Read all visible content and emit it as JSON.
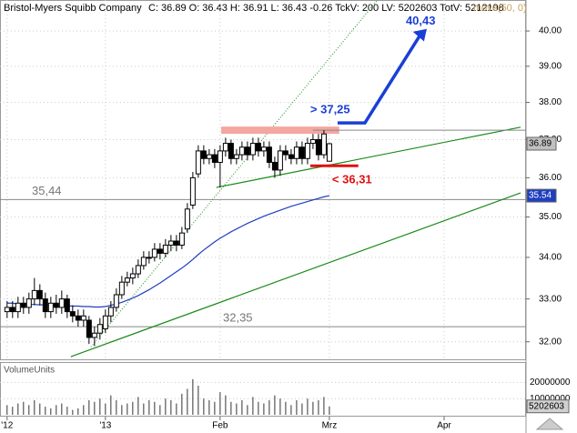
{
  "chart_data": {
    "type": "candlestick",
    "title": "Bristol-Myers Squibb Company",
    "subtitle": "C: 36.89 O: 36.43 H: 36.91 L: 36.43 -0.26 TckV: 200 LV: 5202603 TotV: 5212198",
    "log_scale": true,
    "grid": true,
    "ylim": [
      31.6,
      40.9
    ],
    "yticks": [
      {
        "value": 32,
        "label": "32.00"
      },
      {
        "value": 33,
        "label": "33.00"
      },
      {
        "value": 34,
        "label": "34.00"
      },
      {
        "value": 35,
        "label": "35.00"
      },
      {
        "value": 36,
        "label": "36.00"
      },
      {
        "value": 37,
        "label": "37.00"
      },
      {
        "value": 38,
        "label": "38.00"
      },
      {
        "value": 39,
        "label": "39.00"
      },
      {
        "value": 40,
        "label": "40.00"
      }
    ],
    "xlim": [
      -1.3,
      95
    ],
    "xticks": [
      {
        "value": 0,
        "label": "'12"
      },
      {
        "value": 18,
        "label": "'13"
      },
      {
        "value": 39,
        "label": "Feb"
      },
      {
        "value": 59,
        "label": "Mrz"
      },
      {
        "value": 80,
        "label": "Apr"
      }
    ],
    "open": [
      32.7,
      32.8,
      32.7,
      32.9,
      32.8,
      33.0,
      33.2,
      33.0,
      32.7,
      32.9,
      32.8,
      33.0,
      32.7,
      32.6,
      32.5,
      32.5,
      32.1,
      32.2,
      32.3,
      32.6,
      32.8,
      33.1,
      33.4,
      33.5,
      33.6,
      33.8,
      34.0,
      34.0,
      34.2,
      34.1,
      34.3,
      34.4,
      34.3,
      34.7,
      35.3,
      36.1,
      36.7,
      36.5,
      36.6,
      36.4,
      36.7,
      36.9,
      36.5,
      36.6,
      36.8,
      36.6,
      36.9,
      36.7,
      36.8,
      36.4,
      36.2,
      36.7,
      36.6,
      36.5,
      36.8,
      36.5,
      36.9,
      37.0,
      36.6,
      36.43
    ],
    "high": [
      32.95,
      32.95,
      33.05,
      33.05,
      33.15,
      33.5,
      33.35,
      33.15,
      33.05,
      33.1,
      33.2,
      33.1,
      32.85,
      32.75,
      32.75,
      32.6,
      32.35,
      32.55,
      32.75,
      32.95,
      33.25,
      33.55,
      33.65,
      33.75,
      33.95,
      34.15,
      34.15,
      34.35,
      34.35,
      34.45,
      34.55,
      34.55,
      34.75,
      35.35,
      36.15,
      36.85,
      36.85,
      36.75,
      36.75,
      36.85,
      37.05,
      37.0,
      36.75,
      36.95,
      36.95,
      37.05,
      37.05,
      36.95,
      36.95,
      36.55,
      36.85,
      36.85,
      36.75,
      36.95,
      36.95,
      37.05,
      37.15,
      37.15,
      37.25,
      36.91
    ],
    "low": [
      32.55,
      32.55,
      32.55,
      32.65,
      32.65,
      32.85,
      32.85,
      32.55,
      32.55,
      32.65,
      32.65,
      32.55,
      32.45,
      32.35,
      32.35,
      31.95,
      31.9,
      32.05,
      32.2,
      32.45,
      32.7,
      33.0,
      33.3,
      33.35,
      33.5,
      33.7,
      33.85,
      33.9,
      33.95,
      34.0,
      34.15,
      34.15,
      34.2,
      34.6,
      35.2,
      36.0,
      36.35,
      36.35,
      36.25,
      35.75,
      36.55,
      36.35,
      36.35,
      36.45,
      36.45,
      36.45,
      36.55,
      36.55,
      36.25,
      36.0,
      36.05,
      36.45,
      36.35,
      36.35,
      36.35,
      36.35,
      36.75,
      36.45,
      36.5,
      36.43
    ],
    "close": [
      32.8,
      32.7,
      32.9,
      32.8,
      33.0,
      33.2,
      33.0,
      32.7,
      32.9,
      32.8,
      33.0,
      32.7,
      32.6,
      32.5,
      32.6,
      32.1,
      32.2,
      32.4,
      32.6,
      32.8,
      33.1,
      33.4,
      33.5,
      33.6,
      33.8,
      34.0,
      34.0,
      34.2,
      34.1,
      34.3,
      34.4,
      34.3,
      34.6,
      35.2,
      36.0,
      36.7,
      36.5,
      36.6,
      36.4,
      36.7,
      36.9,
      36.5,
      36.6,
      36.8,
      36.6,
      36.9,
      36.7,
      36.8,
      36.4,
      36.2,
      36.7,
      36.6,
      36.5,
      36.8,
      36.5,
      36.9,
      37.0,
      36.6,
      37.15,
      36.89
    ],
    "ma": {
      "name": "move(50, 0)",
      "color": "#1f3fbf",
      "values": [
        32.9,
        32.9,
        32.88,
        32.88,
        32.87,
        32.87,
        32.86,
        32.86,
        32.85,
        32.85,
        32.84,
        32.84,
        32.83,
        32.83,
        32.82,
        32.82,
        32.81,
        32.81,
        32.82,
        32.85,
        32.88,
        32.92,
        32.97,
        33.02,
        33.08,
        33.15,
        33.22,
        33.3,
        33.38,
        33.47,
        33.56,
        33.65,
        33.74,
        33.84,
        33.95,
        34.07,
        34.18,
        34.28,
        34.38,
        34.47,
        34.55,
        34.63,
        34.7,
        34.77,
        34.84,
        34.9,
        34.96,
        35.02,
        35.07,
        35.12,
        35.17,
        35.22,
        35.27,
        35.31,
        35.35,
        35.39,
        35.43,
        35.47,
        35.51,
        35.54
      ]
    },
    "hlines": [
      {
        "value": 35.44,
        "label": "35,44"
      },
      {
        "value": 32.35,
        "label": "32,35"
      }
    ],
    "zone": {
      "value": 37.25,
      "label": "> 37,25",
      "color": "#f4a6a0"
    },
    "stop": {
      "value": 36.31,
      "label": "< 36,31",
      "color": "#e01010"
    },
    "target": {
      "value": 40.43,
      "label": "40,43",
      "color": "#1a3fd6"
    },
    "trendlines": [
      {
        "color": "#1a8a1a",
        "style": "solid",
        "points": [
          [
            38.3,
            35.75
          ],
          [
            94,
            37.33
          ]
        ]
      },
      {
        "color": "#1a8a1a",
        "style": "solid",
        "points": [
          [
            11.67,
            31.66
          ],
          [
            94,
            35.61
          ]
        ]
      },
      {
        "color": "#1a8a1a",
        "style": "dotted",
        "points": [
          [
            15.33,
            31.88
          ],
          [
            67.8,
            40.9
          ]
        ]
      }
    ],
    "volume": {
      "name": "VolumeUnits",
      "ylim": [
        0,
        32000000
      ],
      "yticks": [
        10000000,
        20000000
      ],
      "values": [
        6000000,
        5000000,
        7000000,
        8000000,
        6000000,
        9000000,
        7000000,
        5000000,
        4000000,
        6000000,
        7000000,
        5000000,
        3000000,
        4000000,
        6000000,
        9000000,
        8000000,
        10000000,
        7000000,
        12000000,
        9000000,
        6000000,
        7000000,
        8000000,
        11000000,
        7000000,
        9000000,
        8000000,
        6000000,
        10000000,
        9000000,
        7000000,
        13000000,
        16000000,
        22000000,
        18000000,
        10000000,
        9000000,
        8000000,
        14000000,
        12000000,
        8000000,
        7000000,
        9000000,
        6000000,
        11000000,
        8000000,
        7000000,
        9000000,
        12000000,
        10000000,
        8000000,
        6000000,
        9000000,
        7000000,
        10000000,
        8000000,
        9000000,
        11000000,
        5202603
      ]
    }
  }
}
